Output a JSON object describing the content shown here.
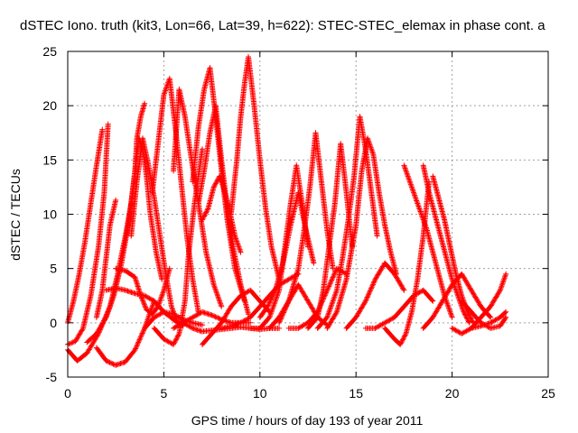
{
  "chart_data": {
    "type": "scatter",
    "title": "dSTEC Iono. truth (kit3, Lon=66, Lat=39, h=622): STEC-STEC_elemax in phase cont. a",
    "xlabel": "GPS time / hours of day 193 of year 2011",
    "ylabel": "dSTEC  / TECUs",
    "xlim": [
      0,
      25
    ],
    "ylim": [
      -5,
      25
    ],
    "xticks": [
      "0",
      "5",
      "10",
      "15",
      "20",
      "25"
    ],
    "yticks": [
      "-5",
      "0",
      "5",
      "10",
      "15",
      "20",
      "25"
    ],
    "grid": true,
    "marker": "+",
    "color": "#ff0000",
    "series": [
      {
        "x": [
          0.0,
          0.3,
          0.6,
          0.9,
          1.2,
          1.5,
          1.8
        ],
        "y": [
          0.0,
          2.0,
          4.5,
          7.5,
          11.0,
          14.5,
          17.8
        ]
      },
      {
        "x": [
          0.0,
          0.4,
          0.8,
          1.2,
          1.6,
          1.9,
          2.1
        ],
        "y": [
          -2.0,
          -1.7,
          -0.5,
          2.5,
          7.0,
          12.0,
          18.3
        ]
      },
      {
        "x": [
          0.0,
          0.5,
          1.0,
          1.6,
          2.2,
          2.6,
          3.0,
          3.3,
          3.5,
          3.6,
          3.8,
          4.0
        ],
        "y": [
          -2.5,
          -3.5,
          -2.8,
          -1.0,
          1.5,
          4.5,
          8.0,
          11.0,
          14.0,
          17.0,
          19.0,
          20.2
        ]
      },
      {
        "x": [
          1.0,
          1.5,
          2.0,
          2.4,
          2.8,
          3.2,
          3.5,
          3.7,
          3.9,
          4.1,
          4.3,
          4.6,
          4.9
        ],
        "y": [
          -1.8,
          -1.0,
          0.5,
          2.5,
          5.5,
          9.5,
          14.0,
          17.0,
          16.0,
          13.5,
          10.0,
          6.5,
          4.0
        ]
      },
      {
        "x": [
          1.5,
          1.8,
          2.0,
          2.2,
          2.5
        ],
        "y": [
          0.5,
          3.0,
          6.0,
          9.0,
          11.3
        ]
      },
      {
        "x": [
          1.5,
          2.0,
          2.5,
          3.0,
          3.5,
          4.0,
          4.5
        ],
        "y": [
          -2.3,
          -3.5,
          -3.9,
          -3.6,
          -2.5,
          -0.5,
          2.0
        ]
      },
      {
        "x": [
          2.0,
          2.5,
          3.0,
          3.5,
          4.0,
          4.5,
          5.0,
          5.5,
          6.0
        ],
        "y": [
          3.0,
          3.2,
          3.0,
          2.7,
          2.5,
          2.0,
          1.0,
          0.3,
          -0.3
        ]
      },
      {
        "x": [
          2.5,
          3.0,
          3.5,
          3.8,
          4.1,
          4.4,
          4.7,
          5.0,
          5.3
        ],
        "y": [
          5.0,
          4.8,
          4.2,
          2.5,
          1.2,
          0.8,
          1.5,
          3.0,
          5.0
        ]
      },
      {
        "x": [
          3.3,
          3.6,
          3.9,
          4.2,
          4.5,
          4.8,
          5.1,
          5.4,
          5.7,
          6.0
        ],
        "y": [
          8.0,
          13.0,
          17.0,
          14.5,
          11.5,
          8.0,
          4.5,
          1.5,
          0.0,
          -0.2
        ]
      },
      {
        "x": [
          4.0,
          4.5,
          5.0,
          5.5,
          6.0,
          6.5,
          7.0
        ],
        "y": [
          -0.5,
          0.5,
          1.0,
          0.8,
          0.3,
          0.0,
          -0.2
        ]
      },
      {
        "x": [
          4.4,
          4.7,
          5.0,
          5.3,
          5.6,
          5.9,
          6.2,
          6.5,
          6.8
        ],
        "y": [
          12.0,
          16.5,
          21.0,
          22.5,
          18.0,
          13.0,
          8.0,
          4.0,
          1.0
        ]
      },
      {
        "x": [
          4.5,
          5.0,
          5.5,
          5.8,
          6.1,
          6.3,
          6.6,
          7.0
        ],
        "y": [
          -0.5,
          -1.5,
          -2.0,
          -1.0,
          2.0,
          6.5,
          11.0,
          16.0
        ]
      },
      {
        "x": [
          5.5,
          5.8,
          6.1,
          6.4,
          6.8,
          7.2,
          7.6,
          8.0
        ],
        "y": [
          14.0,
          21.5,
          19.0,
          15.5,
          11.0,
          6.5,
          3.5,
          1.5
        ]
      },
      {
        "x": [
          5.5,
          6.0,
          6.5,
          7.0,
          7.5,
          8.0,
          8.5,
          9.0,
          9.5
        ],
        "y": [
          -0.5,
          0.0,
          0.5,
          1.0,
          0.7,
          0.3,
          0.0,
          0.0,
          0.0
        ]
      },
      {
        "x": [
          6.0,
          6.5,
          7.0,
          7.5,
          8.0,
          8.5,
          9.0,
          9.5,
          10.0,
          10.5,
          11.0
        ],
        "y": [
          0.0,
          -0.5,
          -0.8,
          -0.7,
          -0.6,
          -0.5,
          -0.4,
          -0.5,
          -0.6,
          -0.5,
          -0.5
        ]
      },
      {
        "x": [
          6.5,
          6.8,
          7.1,
          7.4,
          7.7,
          8.0,
          8.3,
          8.7,
          9.2
        ],
        "y": [
          13.0,
          18.0,
          21.5,
          23.5,
          19.0,
          14.0,
          9.5,
          5.0,
          2.0
        ]
      },
      {
        "x": [
          6.8,
          7.1,
          7.4,
          7.7,
          8.0,
          8.3,
          8.6,
          9.0,
          9.4
        ],
        "y": [
          11.0,
          14.0,
          17.5,
          20.0,
          15.0,
          10.5,
          7.0,
          3.5,
          0.8
        ]
      },
      {
        "x": [
          7.0,
          7.3,
          7.6,
          7.9,
          8.1,
          8.4,
          8.7,
          9.0
        ],
        "y": [
          9.5,
          10.5,
          12.5,
          13.5,
          12.5,
          10.5,
          8.0,
          6.5
        ]
      },
      {
        "x": [
          7.0,
          7.5,
          8.0,
          8.5,
          9.0,
          9.5,
          10.0,
          10.5
        ],
        "y": [
          -2.0,
          -1.0,
          0.0,
          1.5,
          2.5,
          3.0,
          2.0,
          1.0
        ]
      },
      {
        "x": [
          8.5,
          8.8,
          9.0,
          9.2,
          9.4,
          9.7,
          10.0,
          10.3,
          10.6,
          11.0
        ],
        "y": [
          10.0,
          15.0,
          19.0,
          22.0,
          24.5,
          20.0,
          15.0,
          10.5,
          7.0,
          4.0
        ]
      },
      {
        "x": [
          8.0,
          8.5,
          9.0,
          9.5,
          10.0,
          10.5,
          11.0,
          11.5,
          12.0
        ],
        "y": [
          -0.5,
          -0.3,
          0.0,
          0.5,
          1.5,
          2.5,
          3.5,
          4.0,
          4.5
        ]
      },
      {
        "x": [
          9.5,
          10.0,
          10.5,
          11.0,
          11.3,
          11.6,
          11.9,
          12.2,
          12.5
        ],
        "y": [
          -0.5,
          -0.5,
          0.5,
          3.0,
          7.0,
          11.0,
          14.5,
          11.0,
          7.0
        ]
      },
      {
        "x": [
          10.0,
          10.4,
          10.8,
          11.2,
          11.6,
          12.0,
          12.4,
          12.8
        ],
        "y": [
          0.5,
          1.5,
          3.0,
          5.5,
          9.0,
          12.0,
          8.5,
          5.5
        ]
      },
      {
        "x": [
          10.5,
          11.0,
          11.5,
          12.0,
          12.5,
          13.0,
          13.5
        ],
        "y": [
          -0.5,
          0.5,
          2.0,
          3.5,
          2.0,
          0.5,
          -0.2
        ]
      },
      {
        "x": [
          11.0,
          11.5,
          12.0,
          12.3,
          12.6,
          12.9,
          13.2,
          13.5,
          13.8
        ],
        "y": [
          0.0,
          2.0,
          5.0,
          8.5,
          12.5,
          17.5,
          13.0,
          8.5,
          5.0
        ]
      },
      {
        "x": [
          11.5,
          12.0,
          12.5,
          13.0,
          13.5,
          14.0,
          14.5
        ],
        "y": [
          -0.5,
          -0.5,
          0.0,
          1.0,
          3.0,
          5.0,
          4.5
        ]
      },
      {
        "x": [
          12.5,
          13.0,
          13.3,
          13.6,
          13.9,
          14.2,
          14.5,
          14.8
        ],
        "y": [
          -0.5,
          0.5,
          3.0,
          7.0,
          11.0,
          16.5,
          12.0,
          7.0
        ]
      },
      {
        "x": [
          13.0,
          13.5,
          14.0,
          14.3,
          14.6,
          14.9,
          15.2,
          15.5,
          15.8,
          16.1
        ],
        "y": [
          -0.5,
          0.5,
          3.0,
          6.0,
          9.5,
          13.5,
          19.0,
          16.0,
          12.0,
          8.0
        ]
      },
      {
        "x": [
          13.5,
          14.0,
          14.5,
          15.0,
          15.3,
          15.6,
          15.9,
          16.2,
          16.5,
          16.8,
          17.1
        ],
        "y": [
          -0.5,
          1.0,
          4.0,
          9.0,
          14.0,
          17.0,
          15.5,
          12.0,
          9.0,
          6.5,
          4.5
        ]
      },
      {
        "x": [
          14.5,
          15.0,
          15.5,
          16.0,
          16.5,
          17.0,
          17.5
        ],
        "y": [
          -0.5,
          0.5,
          2.0,
          4.0,
          5.5,
          4.5,
          3.0
        ]
      },
      {
        "x": [
          15.5,
          16.0,
          16.5,
          17.0,
          17.5,
          18.0,
          18.5,
          19.0
        ],
        "y": [
          -0.5,
          -0.5,
          0.0,
          0.5,
          1.5,
          2.5,
          3.0,
          2.0
        ]
      },
      {
        "x": [
          16.5,
          17.0,
          17.3,
          17.6,
          17.9,
          18.2,
          18.5,
          18.8
        ],
        "y": [
          -0.5,
          -1.5,
          -2.0,
          -1.0,
          1.0,
          4.0,
          8.0,
          13.0
        ]
      },
      {
        "x": [
          17.5,
          17.8,
          18.1,
          18.4,
          18.7,
          19.0,
          19.3,
          19.6,
          20.0
        ],
        "y": [
          14.5,
          13.0,
          11.5,
          10.0,
          8.5,
          6.5,
          4.5,
          2.5,
          0.5
        ]
      },
      {
        "x": [
          18.5,
          18.8,
          19.1,
          19.4,
          19.7,
          20.0,
          20.3,
          20.6,
          20.9
        ],
        "y": [
          14.5,
          12.0,
          10.0,
          8.0,
          6.0,
          4.0,
          2.5,
          1.0,
          0.0
        ]
      },
      {
        "x": [
          19.0,
          19.3,
          19.6,
          19.9,
          20.2,
          20.5,
          20.8,
          21.1
        ],
        "y": [
          13.5,
          11.5,
          9.5,
          7.0,
          4.5,
          2.5,
          1.0,
          0.0
        ]
      },
      {
        "x": [
          18.5,
          19.0,
          19.5,
          20.0,
          20.5,
          21.0,
          21.5,
          22.0
        ],
        "y": [
          -0.5,
          0.5,
          2.0,
          3.5,
          4.5,
          3.0,
          1.5,
          0.5
        ]
      },
      {
        "x": [
          20.0,
          20.5,
          21.0,
          21.5,
          22.0,
          22.5,
          22.8
        ],
        "y": [
          -0.5,
          -1.0,
          -0.5,
          0.5,
          1.5,
          3.0,
          4.5
        ]
      },
      {
        "x": [
          20.5,
          21.0,
          21.5,
          22.0,
          22.5,
          22.8
        ],
        "y": [
          2.0,
          1.0,
          0.0,
          -0.5,
          -0.3,
          0.5
        ]
      },
      {
        "x": [
          21.0,
          21.5,
          22.0,
          22.5,
          22.8
        ],
        "y": [
          -0.5,
          -0.3,
          0.0,
          0.5,
          1.0
        ]
      }
    ]
  }
}
